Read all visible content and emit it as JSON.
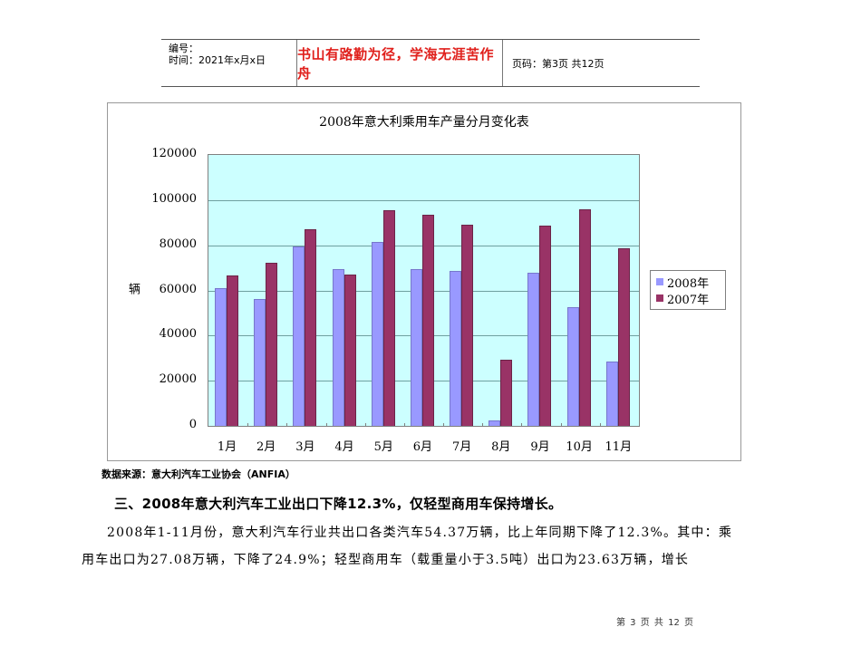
{
  "header": {
    "number_label": "编号：",
    "time_label": "时间：2021年x月x日",
    "motto": "书山有路勤为径，学海无涯苦作舟",
    "page_info": "页码：第3页  共12页"
  },
  "chart_data": {
    "type": "bar",
    "title": "2008年意大利乘用车产量分月变化表",
    "xlabel": "",
    "ylabel": "辆",
    "ylim": [
      0,
      120000
    ],
    "yticks": [
      "120000",
      "100000",
      "80000",
      "60000",
      "40000",
      "20000",
      "0"
    ],
    "grid": true,
    "legend_position": "right",
    "categories": [
      "1月",
      "2月",
      "3月",
      "4月",
      "5月",
      "6月",
      "7月",
      "8月",
      "9月",
      "10月",
      "11月"
    ],
    "series": [
      {
        "name": "2008年",
        "color": "#9999ff",
        "values": [
          61200,
          56000,
          79600,
          69600,
          81600,
          69600,
          68500,
          2400,
          67800,
          52600,
          28700
        ]
      },
      {
        "name": "2007年",
        "color": "#993366",
        "values": [
          66800,
          72400,
          87200,
          67200,
          95600,
          93600,
          89300,
          29500,
          88900,
          96100,
          78500
        ]
      }
    ]
  },
  "body": {
    "source": "数据来源：意大利汽车工业协会（ANFIA）",
    "heading": "三、2008年意大利汽车工业出口下降12.3%，仅轻型商用车保持增长。",
    "para_line1": "2008年1-11月份，意大利汽车行业共出口各类汽车54.37万辆，比上年同期下降了12.3%。其中：乘",
    "para_line2": "用车出口为27.08万辆，下降了24.9%；轻型商用车（载重量小于3.5吨）出口为23.63万辆，增长"
  },
  "footer": {
    "page_text": "第 3 页 共 12 页"
  }
}
